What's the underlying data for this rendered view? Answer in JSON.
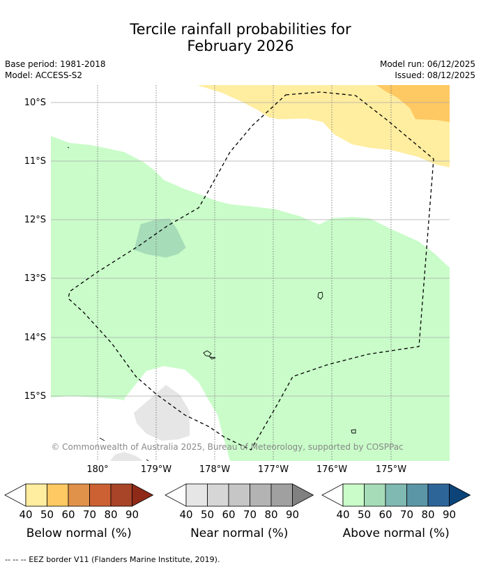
{
  "title": {
    "line1": "Tercile rainfall probabilities for",
    "line2": "February 2026"
  },
  "meta": {
    "base_period": "Base period: 1981-2018",
    "model": "Model: ACCESS-S2",
    "model_run": "Model run: 06/12/2025",
    "issued": "Issued: 08/12/2025"
  },
  "map": {
    "lat_labels": [
      "10°S",
      "11°S",
      "12°S",
      "13°S",
      "14°S",
      "15°S"
    ],
    "lon_labels": [
      "180°",
      "179°W",
      "178°W",
      "177°W",
      "176°W",
      "175°W"
    ],
    "copyright": "© Commonwealth of Australia 2025, Bureau of Meteorology, supported by COSPPac"
  },
  "legends": [
    {
      "label": "Below normal (%)",
      "ticks": [
        "40",
        "50",
        "60",
        "70",
        "80",
        "90"
      ],
      "colors": [
        "#ffeda0",
        "#fec862",
        "#e0924a",
        "#cc6133",
        "#a84427",
        "#8f2a18"
      ]
    },
    {
      "label": "Near normal (%)",
      "ticks": [
        "40",
        "50",
        "60",
        "70",
        "80",
        "90"
      ],
      "colors": [
        "#e6e6e6",
        "#d6d6d6",
        "#c6c6c6",
        "#b3b3b3",
        "#a0a0a0",
        "#808080"
      ]
    },
    {
      "label": "Above normal (%)",
      "ticks": [
        "40",
        "50",
        "60",
        "70",
        "80",
        "90"
      ],
      "colors": [
        "#c9fcc9",
        "#a6dcb8",
        "#80b8b2",
        "#5b96a6",
        "#2e6599",
        "#0c447a"
      ]
    }
  ],
  "footnote": "--  --  -- EEZ border V11 (Flanders Marine Institute, 2019)."
}
